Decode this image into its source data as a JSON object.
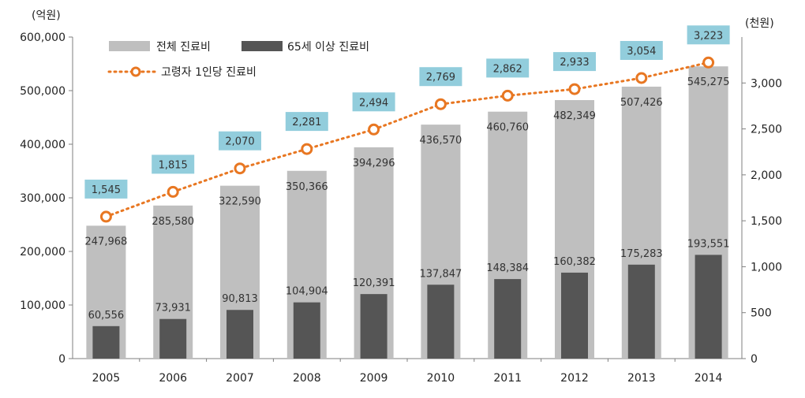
{
  "chart_data": {
    "type": "bar",
    "categories": [
      "2005",
      "2006",
      "2007",
      "2008",
      "2009",
      "2010",
      "2011",
      "2012",
      "2013",
      "2014"
    ],
    "series": [
      {
        "name": "전체 진료비",
        "type": "bar",
        "axis": "left",
        "color": "#bfbfbf",
        "values": [
          247968,
          285580,
          322590,
          350366,
          394296,
          436570,
          460760,
          482349,
          507426,
          545275
        ],
        "labels": [
          "247,968",
          "285,580",
          "322,590",
          "350,366",
          "394,296",
          "436,570",
          "460,760",
          "482,349",
          "507,426",
          "545,275"
        ]
      },
      {
        "name": "65세 이상  진료비",
        "type": "bar",
        "axis": "left",
        "color": "#555555",
        "values": [
          60556,
          73931,
          90813,
          104904,
          120391,
          137847,
          148384,
          160382,
          175283,
          193551
        ],
        "labels": [
          "60,556",
          "73,931",
          "90,813",
          "104,904",
          "120,391",
          "137,847",
          "148,384",
          "160,382",
          "175,283",
          "193,551"
        ]
      },
      {
        "name": "고령자 1인당 진료비",
        "type": "line",
        "axis": "right",
        "color": "#e87722",
        "values": [
          1545,
          1815,
          2070,
          2281,
          2494,
          2769,
          2862,
          2933,
          3054,
          3223
        ],
        "labels": [
          "1,545",
          "1,815",
          "2,070",
          "2,281",
          "2,494",
          "2,769",
          "2,862",
          "2,933",
          "3,054",
          "3,223"
        ]
      }
    ],
    "y_left": {
      "unit": "(억원)",
      "range": [
        0,
        600000
      ],
      "ticks": [
        0,
        100000,
        200000,
        300000,
        400000,
        500000,
        600000
      ],
      "tick_labels": [
        "0",
        "100,000",
        "200,000",
        "300,000",
        "400,000",
        "500,000",
        "600,000"
      ]
    },
    "y_right": {
      "unit": "(천원)",
      "range": [
        0,
        3500
      ],
      "ticks": [
        0,
        500,
        1000,
        1500,
        2000,
        2500,
        3000
      ],
      "tick_labels": [
        "0",
        "500",
        "1,000",
        "1,500",
        "2,000",
        "2,500",
        "3,000"
      ]
    },
    "grid": false,
    "legend_position": "top-left",
    "label_box_color": "#92cddc"
  }
}
